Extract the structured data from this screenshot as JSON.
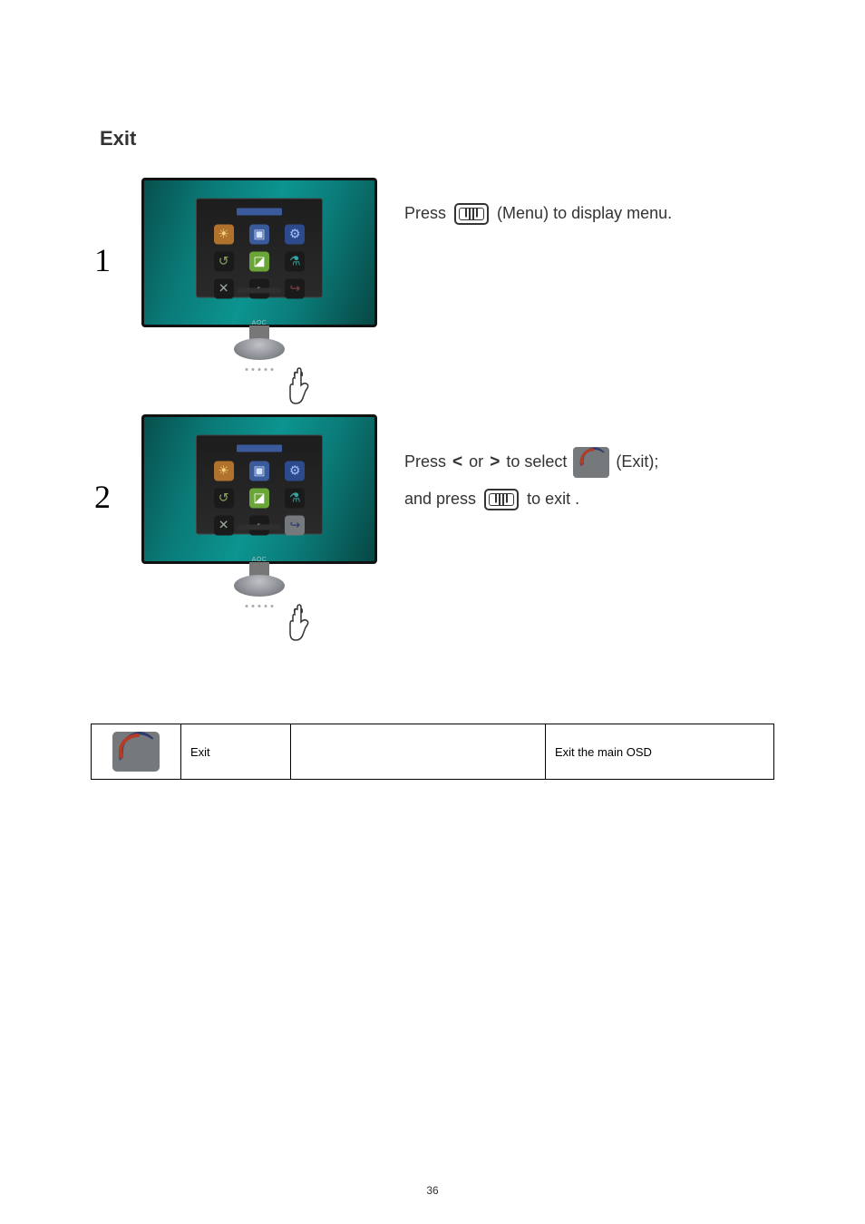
{
  "heading": "Exit",
  "pageNumber": "36",
  "step1": {
    "num": "1",
    "text_before": "Press",
    "text_after": "(Menu) to display menu.",
    "menu_bar_heights": [
      10,
      13,
      13,
      10
    ]
  },
  "step2": {
    "num": "2",
    "line1_before": "Press",
    "line1_or": "or",
    "line1_after": "to select",
    "line1_label": "(Exit);",
    "line2_before": "and press",
    "line2_after": "to exit ."
  },
  "osd": {
    "brand": "AOC",
    "icons_row1": [
      {
        "bg": "#b0722c",
        "glyph": "☀",
        "fg": "#f3d27a"
      },
      {
        "bg": "#3a5a9c",
        "glyph": "▣",
        "fg": "#d2e2ff"
      },
      {
        "bg": "#2d4a8c",
        "glyph": "⚙",
        "fg": "#a8c3ff"
      }
    ],
    "icons_row2": [
      {
        "bg": "#1a1a1a",
        "glyph": "↺",
        "fg": "#8aa65a"
      },
      {
        "bg": "#6aa538",
        "glyph": "◪",
        "fg": "#fff"
      },
      {
        "bg": "#1a1a1a",
        "glyph": "⚗",
        "fg": "#35a3a0"
      }
    ],
    "icons_row3": [
      {
        "bg": "#1a1a1a",
        "glyph": "✕",
        "fg": "#9aa99c"
      },
      {
        "bg": "#1a1a1a",
        "glyph": "◐",
        "fg": "#c7cbd1"
      },
      {
        "bg": "#1a1a1a",
        "glyph": "↪",
        "fg": "#7e404a"
      }
    ],
    "icons_row3_v2": [
      {
        "bg": "#1a1a1a",
        "glyph": "✕",
        "fg": "#9aa99c"
      },
      {
        "bg": "#1a1a1a",
        "glyph": "◐",
        "fg": "#c7cbd1"
      },
      {
        "bg": "#76797c",
        "glyph": "↪",
        "fg": "#2f3b6d"
      }
    ]
  },
  "table": {
    "label": "Exit",
    "desc": "Exit the main OSD"
  },
  "colors": {
    "exit_icon_bg": "#76797c",
    "curl_blue": "#2f3b6d",
    "curl_red": "#b23c28"
  }
}
